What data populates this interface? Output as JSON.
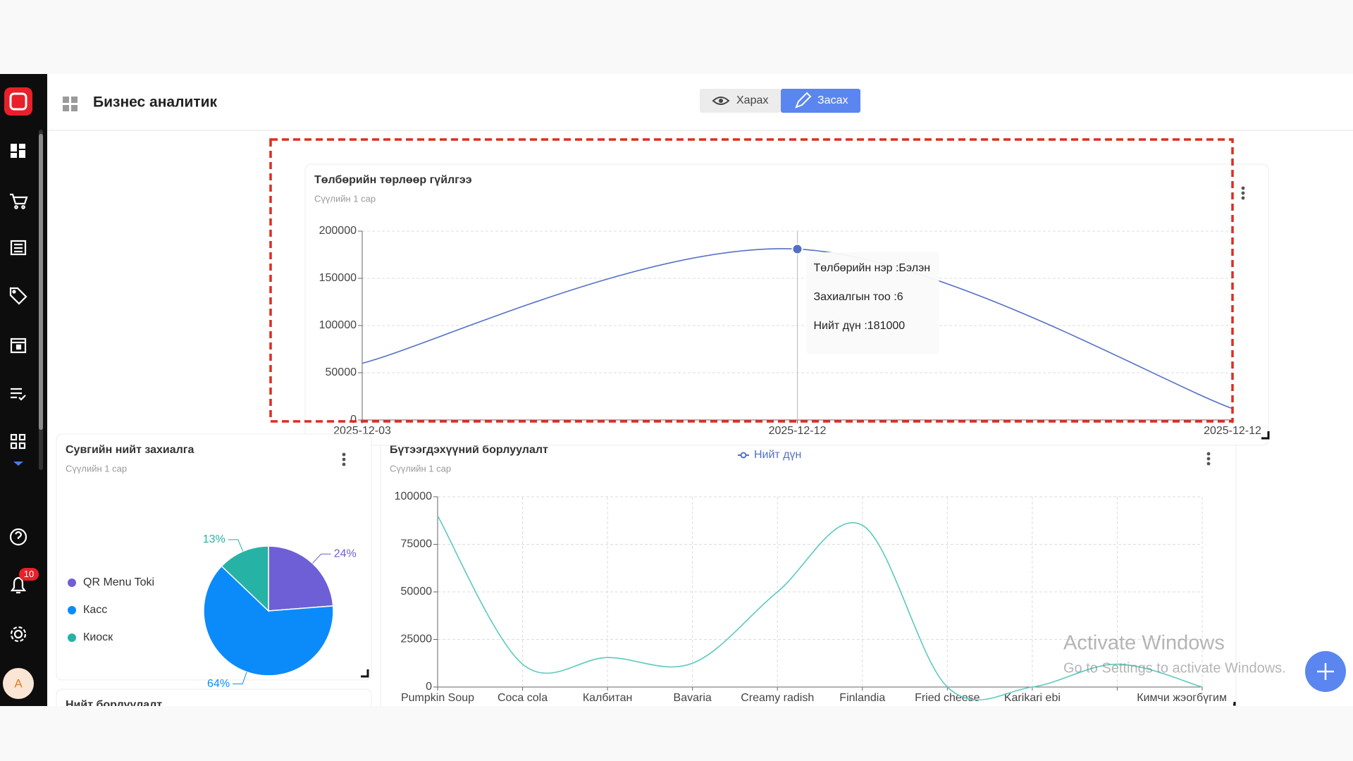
{
  "app": {
    "title": "Бизнес аналитик",
    "view_button": "Харах",
    "edit_button": "Засах",
    "notification_count": "10",
    "avatar": "A",
    "next_card_title": "Нийт борлуулалт",
    "watermark": [
      "Activate Windows",
      "Go to Settings to activate Windows."
    ]
  },
  "chart_data": [
    {
      "type": "line",
      "title": "Төлбөрийн төрлөөр гүйлгээ",
      "subtitle": "Сүүлийн 1 сар",
      "categories": [
        "2025-12-03",
        "2025-12-12",
        "2025-12-12"
      ],
      "values": [
        60000,
        181000,
        12000
      ],
      "color": "#5470c6",
      "ylim": [
        0,
        200000
      ],
      "yticks": [
        0,
        50000,
        100000,
        150000,
        200000
      ],
      "grid": true,
      "smooth": true,
      "tooltip": {
        "index": 1,
        "lines": [
          "Төлбөрийн нэр :Бэлэн",
          "Захиалгын тоо :6",
          "Нийт дүн :181000"
        ]
      }
    },
    {
      "type": "pie",
      "title": "Сувгийн нийт захиалга",
      "subtitle": "Сүүлийн 1 сар",
      "categories": [
        "QR Menu Toki",
        "Касс",
        "Киоск"
      ],
      "values": [
        24,
        64,
        13
      ],
      "value_labels": [
        "24%",
        "64%",
        "13%"
      ],
      "colors": [
        "#6f5fd6",
        "#0b8bfa",
        "#26b3a6"
      ],
      "legend": "left"
    },
    {
      "type": "line",
      "title": "Бүтээгдэхүүний борлуулалт",
      "subtitle": "Сүүлийн 1 сар",
      "categories": [
        "Pumpkin Soup",
        "Coca cola",
        "Калбитан",
        "Bavaria",
        "Creamy radish",
        "Finlandia",
        "Fried cheese",
        "Karikari ebi",
        null,
        "Кимчи жэогбүгим"
      ],
      "series": [
        {
          "name": "Нийт дүн",
          "color": "#5ccabe",
          "values": [
            90000,
            12000,
            15500,
            12500,
            50000,
            85000,
            0,
            0,
            12000,
            0
          ]
        }
      ],
      "ylim": [
        0,
        100000
      ],
      "yticks": [
        0,
        25000,
        50000,
        75000,
        100000
      ],
      "grid": true,
      "smooth": true,
      "legend": "top"
    }
  ]
}
